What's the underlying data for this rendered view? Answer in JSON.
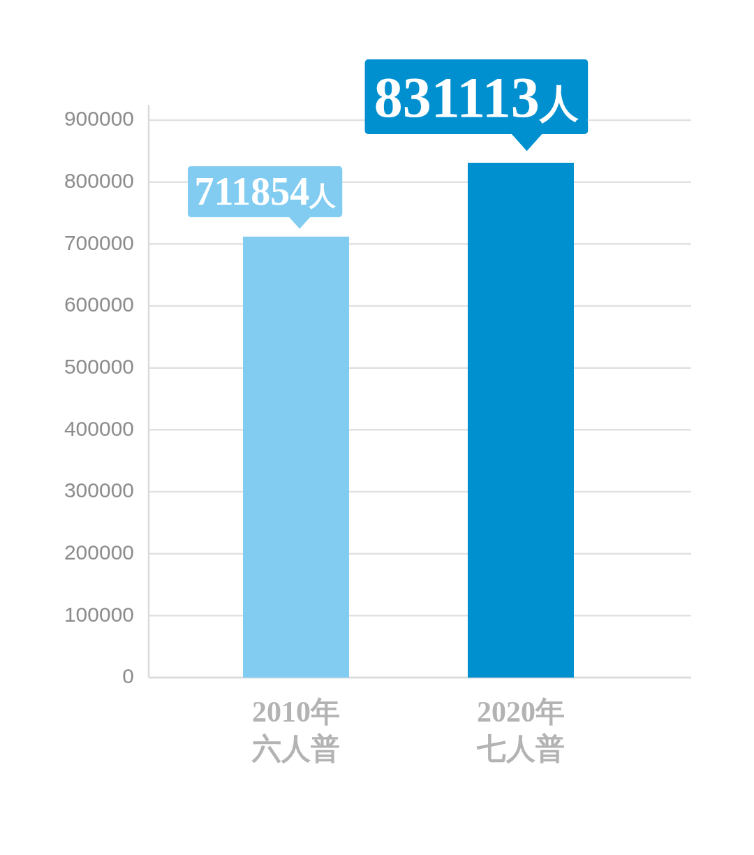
{
  "chart_data": {
    "type": "bar",
    "categories": [
      "2010年六人普",
      "2020年七人普"
    ],
    "values": [
      711854,
      831113
    ],
    "colors": [
      "#82ccf2",
      "#0090cf"
    ],
    "value_labels": [
      "711854人",
      "831113人"
    ],
    "ylim": [
      0,
      900000
    ],
    "yticks": [
      0,
      100000,
      200000,
      300000,
      400000,
      500000,
      600000,
      700000,
      800000,
      900000
    ],
    "grid": "y"
  }
}
